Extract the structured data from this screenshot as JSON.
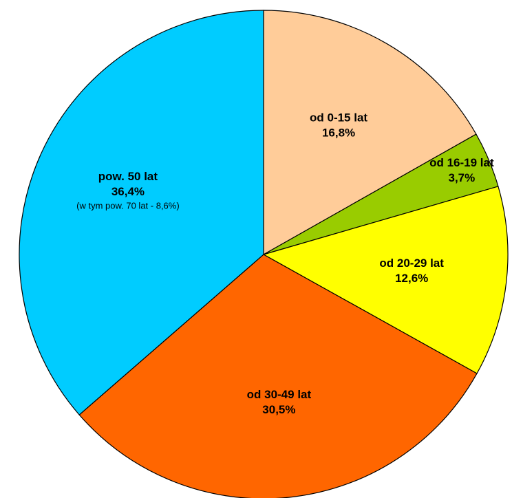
{
  "chart_data": {
    "type": "pie",
    "categories": [
      "od 0-15 lat",
      "od 16-19 lat",
      "od 20-29 lat",
      "od 30-49 lat",
      "pow. 50 lat"
    ],
    "values": [
      16.8,
      3.7,
      12.6,
      30.5,
      36.4
    ],
    "value_labels": [
      "16,8%",
      "3,7%",
      "12,6%",
      "30,5%",
      "36,4%"
    ],
    "colors": [
      "#ffcc99",
      "#99cc00",
      "#ffff00",
      "#ff6600",
      "#00ccff"
    ],
    "annotation": "(w tym pow. 70 lat - 8,6%)"
  }
}
